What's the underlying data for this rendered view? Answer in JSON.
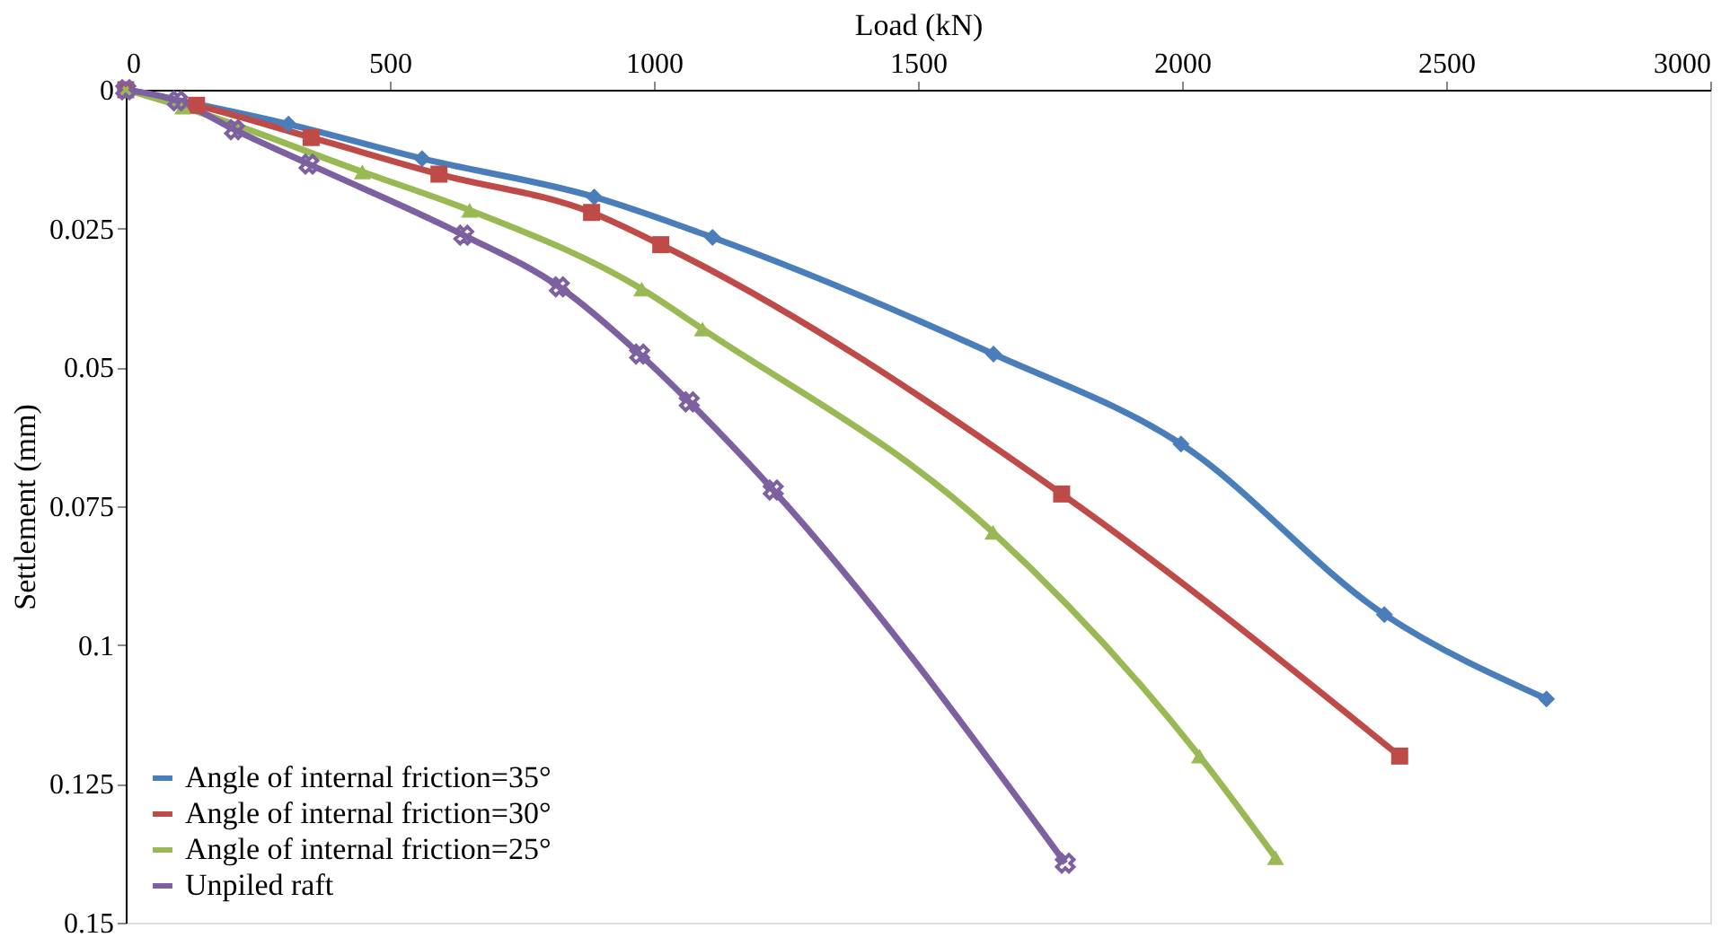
{
  "chart_data": {
    "type": "line",
    "xlabel": "Load (kN)",
    "ylabel": "Settlement (mm)",
    "xlim": [
      0,
      3000
    ],
    "xticks": [
      0,
      500,
      1000,
      1500,
      2000,
      2500,
      3000
    ],
    "ylim": [
      0.15,
      0
    ],
    "yticks": [
      0,
      0.025,
      0.05,
      0.075,
      0.1,
      0.125,
      0.15
    ],
    "grid": false,
    "legend": "bottom left",
    "series": [
      {
        "name": "Angle of internal friction=35°",
        "color": "#4a7ebb",
        "marker": "diamond",
        "x": [
          0,
          308,
          561,
          887,
          1111,
          1643,
          1998,
          2383,
          2690
        ],
        "values": [
          0,
          0.0062,
          0.0124,
          0.0193,
          0.0266,
          0.0476,
          0.0638,
          0.0945,
          0.1097
        ]
      },
      {
        "name": "Angle of internal friction=30°",
        "color": "#be4b48",
        "marker": "square",
        "x": [
          0,
          134,
          351,
          593,
          882,
          1013,
          1772,
          2412
        ],
        "values": [
          0,
          0.0028,
          0.0086,
          0.0152,
          0.0221,
          0.0279,
          0.0728,
          0.12
        ]
      },
      {
        "name": "Angle of internal friction=25°",
        "color": "#98b954",
        "marker": "triangle",
        "x": [
          0,
          108,
          448,
          651,
          977,
          1092,
          1642,
          2033,
          2177
        ],
        "values": [
          0,
          0.0031,
          0.0148,
          0.0217,
          0.0359,
          0.0431,
          0.0797,
          0.12,
          0.1383
        ]
      },
      {
        "name": "Unpiled raft",
        "color": "#7d60a0",
        "marker": "cross",
        "x": [
          0,
          98,
          206,
          347,
          640,
          821,
          973,
          1067,
          1226,
          1779
        ],
        "values": [
          0,
          0.002,
          0.0072,
          0.0134,
          0.0262,
          0.0355,
          0.0476,
          0.0562,
          0.0721,
          0.1393
        ]
      }
    ]
  }
}
